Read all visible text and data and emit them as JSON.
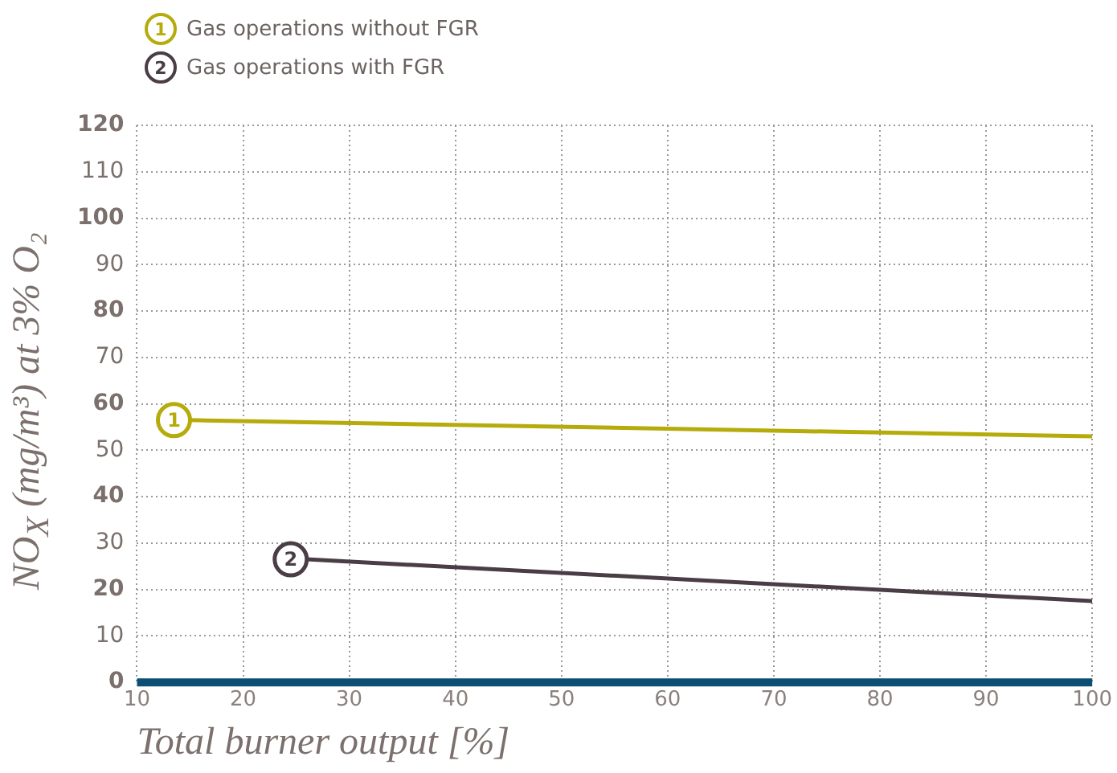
{
  "chart_data": {
    "type": "line",
    "xlabel": "Total burner output [%]",
    "ylabel": "NO$_{X}$ (mg/m³) at 3% O₂",
    "series": [
      {
        "name": "Gas operations without FGR",
        "color": "#b5ac0c",
        "x": [
          15,
          100
        ],
        "values": [
          56.5,
          53
        ]
      },
      {
        "name": "Gas operations with FGR",
        "color": "#4a3d45",
        "x": [
          26,
          100
        ],
        "values": [
          26.5,
          17.5
        ]
      }
    ],
    "annotations": [
      {
        "text": "1",
        "x": 15,
        "y": 56.5
      },
      {
        "text": "2",
        "x": 26,
        "y": 26.5
      }
    ],
    "xlim": [
      10,
      100
    ],
    "xticks": [
      10,
      20,
      30,
      40,
      50,
      60,
      70,
      80,
      90,
      100
    ],
    "ylim": [
      0,
      120
    ],
    "yticks": [
      0,
      10,
      20,
      30,
      40,
      50,
      60,
      70,
      80,
      90,
      100,
      110,
      120
    ],
    "grid": true,
    "legend": "top left",
    "marker": "none",
    "line_style": "solid"
  }
}
